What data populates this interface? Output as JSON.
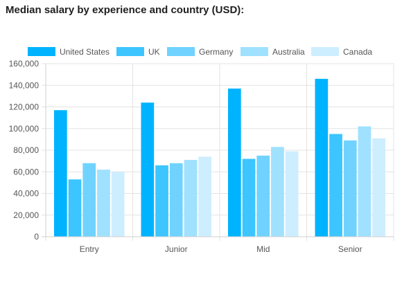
{
  "page_title": "Median salary by experience and country (USD):",
  "chart_data": {
    "type": "bar",
    "title": "",
    "xlabel": "",
    "ylabel": "",
    "categories": [
      "Entry",
      "Junior",
      "Mid",
      "Senior"
    ],
    "ylim": [
      0,
      160000
    ],
    "yticks": [
      0,
      20000,
      40000,
      60000,
      80000,
      100000,
      120000,
      140000,
      160000
    ],
    "ytick_labels": [
      "0",
      "20,000",
      "40,000",
      "60,000",
      "80,000",
      "100,000",
      "120,000",
      "140,000",
      "160,000"
    ],
    "grid": true,
    "legend_position": "top",
    "series": [
      {
        "name": "United States",
        "color": "#00b3ff",
        "values": [
          117000,
          124000,
          137000,
          146000
        ]
      },
      {
        "name": "UK",
        "color": "#3dc5ff",
        "values": [
          53000,
          66000,
          72000,
          95000
        ]
      },
      {
        "name": "Germany",
        "color": "#70d3ff",
        "values": [
          68000,
          68000,
          75000,
          89000
        ]
      },
      {
        "name": "Australia",
        "color": "#9fe1ff",
        "values": [
          62000,
          71000,
          83000,
          102000
        ]
      },
      {
        "name": "Canada",
        "color": "#cdeeff",
        "values": [
          60000,
          74000,
          79000,
          91000
        ]
      }
    ]
  }
}
